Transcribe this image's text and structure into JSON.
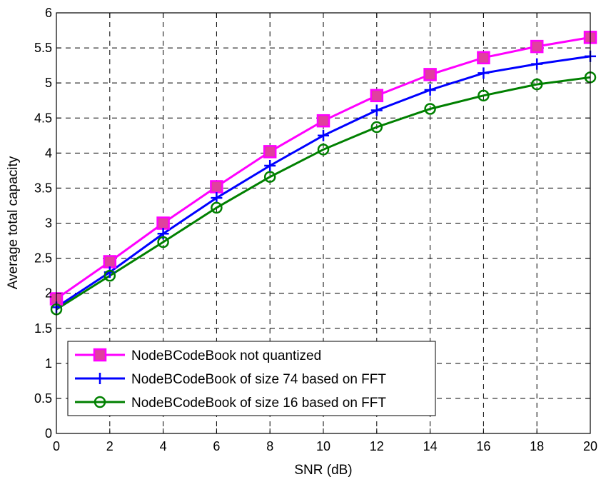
{
  "chart_data": {
    "type": "line",
    "xlabel": "SNR (dB)",
    "ylabel": "Average total capacity",
    "xlim": [
      0,
      20
    ],
    "ylim": [
      0,
      6
    ],
    "xticks": [
      0,
      2,
      4,
      6,
      8,
      10,
      12,
      14,
      16,
      18,
      20
    ],
    "yticks": [
      0,
      0.5,
      1,
      1.5,
      2,
      2.5,
      3,
      3.5,
      4,
      4.5,
      5,
      5.5,
      6
    ],
    "grid": true,
    "legend_position": "bottom-left",
    "x": [
      0,
      2,
      4,
      6,
      8,
      10,
      12,
      14,
      16,
      18,
      20
    ],
    "series": [
      {
        "name": "NodeBCodeBook not quantized",
        "color": "#ff00ff",
        "marker": "square",
        "values": [
          1.92,
          2.45,
          3.0,
          3.52,
          4.02,
          4.46,
          4.82,
          5.12,
          5.36,
          5.52,
          5.65
        ]
      },
      {
        "name": "NodeBCodeBook of size 74 based on FFT",
        "color": "#0000ff",
        "marker": "plus",
        "values": [
          1.8,
          2.3,
          2.85,
          3.36,
          3.82,
          4.25,
          4.61,
          4.9,
          5.14,
          5.27,
          5.38
        ]
      },
      {
        "name": "NodeBCodeBook of size 16 based on FFT",
        "color": "#008000",
        "marker": "circle",
        "values": [
          1.77,
          2.25,
          2.73,
          3.22,
          3.66,
          4.05,
          4.37,
          4.63,
          4.82,
          4.98,
          5.08
        ]
      }
    ]
  }
}
